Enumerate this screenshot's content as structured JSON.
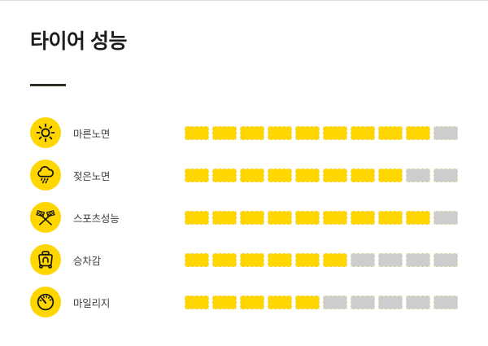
{
  "header": {
    "title": "타이어 성능"
  },
  "colors": {
    "accent_yellow": "#ffd600",
    "inactive_gray": "#cdcdcd",
    "title_black": "#1f1d1a",
    "label_gray": "#424242",
    "divider_color": "#332e25",
    "segment_edge": "#f3ecc9"
  },
  "chart_data": {
    "type": "bar",
    "title": "타이어 성능",
    "subtitle": "",
    "max_segments": 10,
    "categories": [
      "마른노면",
      "젖은노면",
      "스포츠성능",
      "승차감",
      "마일리지"
    ],
    "values": [
      9,
      8,
      9,
      6,
      5
    ],
    "icons": [
      "sun-icon",
      "rain-cloud-icon",
      "racing-flags-icon",
      "car-seat-icon",
      "speedometer-icon"
    ],
    "legend": "none",
    "orientation": "horizontal",
    "value_range": [
      0,
      10
    ]
  }
}
